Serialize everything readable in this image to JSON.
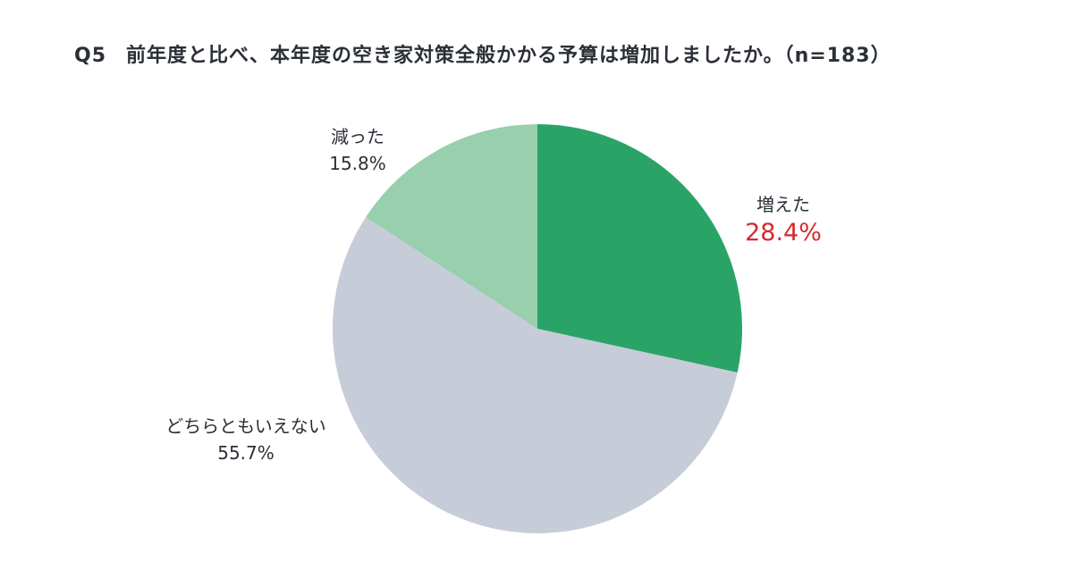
{
  "title": {
    "question_no": "Q5",
    "text": "前年度と比べ、本年度の空き家対策全般かかる予算は増加しましたか。（n=183）"
  },
  "labels": {
    "up": {
      "name": "増えた",
      "pct": "28.4%"
    },
    "down": {
      "name": "減った",
      "pct": "15.8%"
    },
    "neutral": {
      "name": "どちらともいえない",
      "pct": "55.7%"
    }
  },
  "colors": {
    "up": "#2aa466",
    "neutral": "#c6ccd8",
    "down": "#98cfad",
    "highlight_text": "#d42a2f",
    "text": "#2b2f36"
  },
  "chart_data": {
    "type": "pie",
    "title": "Q5 前年度と比べ、本年度の空き家対策全般かかる予算は増加しましたか。（n=183）",
    "n": 183,
    "categories": [
      "増えた",
      "どちらともいえない",
      "減った"
    ],
    "values": [
      28.4,
      55.7,
      15.8
    ],
    "unit": "%",
    "start_angle": "12 o'clock, clockwise",
    "legend": "none (direct labels)",
    "highlight": "増えた"
  }
}
